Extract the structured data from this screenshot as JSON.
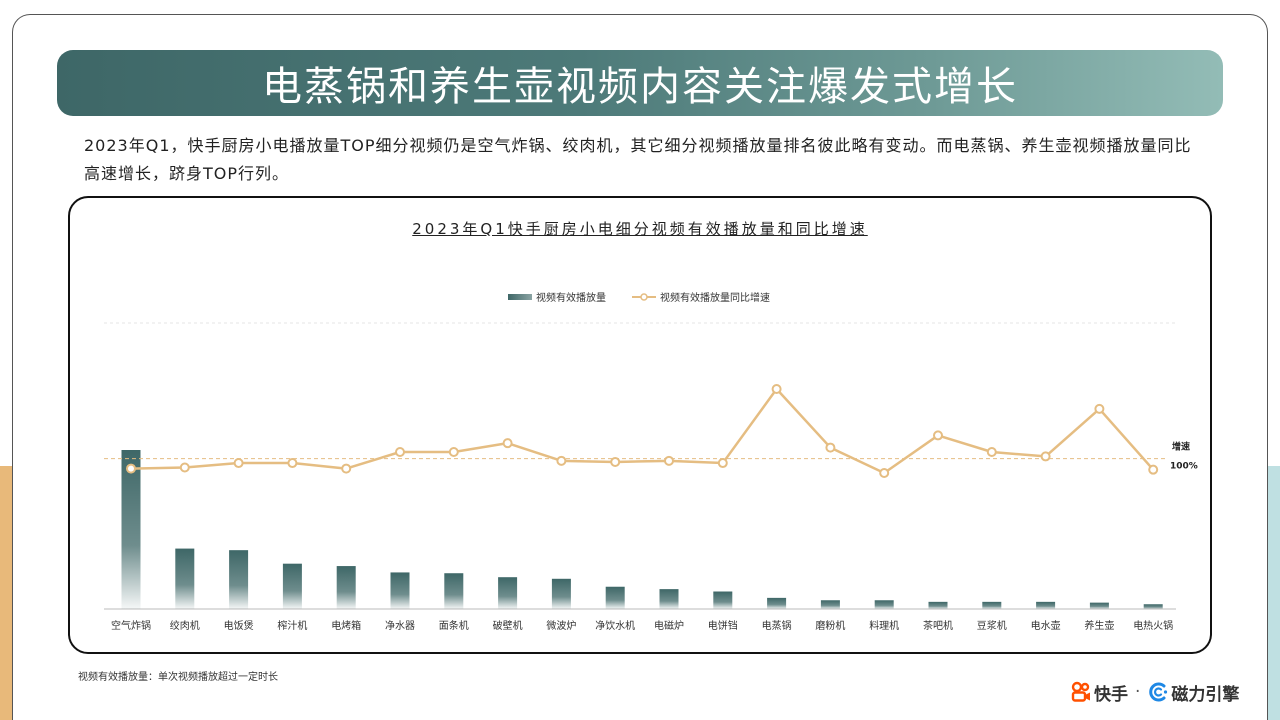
{
  "header": {
    "title": "电蒸锅和养生壶视频内容关注爆发式增长"
  },
  "summary": "2023年Q1，快手厨房小电播放量TOP细分视频仍是空气炸锅、绞肉机，其它细分视频播放量排名彼此略有变动。而电蒸锅、养生壶视频播放量同比高速增长，跻身TOP行列。",
  "footnote": "视频有效播放量：单次视频播放超过一定时长",
  "brand": {
    "kuaishou": "快手",
    "separator": "·",
    "cili": "磁力引擎",
    "kuaishou_color": "#ff5000",
    "cili_color": "#1e88e5"
  },
  "colors": {
    "bar": "#3e6767",
    "line": "#e5bd82",
    "title_gradient_start": "#3e6767",
    "title_gradient_end": "#93bcb6"
  },
  "chart_data": {
    "type": "bar",
    "title": "2023年Q1快手厨房小电细分视频有效播放量和同比增速",
    "categories": [
      "空气炸锅",
      "绞肉机",
      "电饭煲",
      "榨汁机",
      "电烤箱",
      "净水器",
      "面条机",
      "破壁机",
      "微波炉",
      "净饮水机",
      "电磁炉",
      "电饼铛",
      "电蒸锅",
      "磨粉机",
      "料理机",
      "茶吧机",
      "豆浆机",
      "电水壶",
      "养生壶",
      "电热火锅"
    ],
    "series": [
      {
        "name": "视频有效播放量",
        "type": "bar",
        "values": [
          100,
          38,
          37,
          28.5,
          27,
          23,
          22.5,
          20,
          19,
          14,
          12.5,
          11,
          7,
          5.5,
          5.5,
          4.5,
          4.5,
          4.5,
          4,
          3
        ]
      },
      {
        "name": "视频有效播放量同比增速",
        "type": "line",
        "values": [
          91,
          92,
          96,
          96,
          91,
          106,
          106,
          114,
          98,
          97,
          98,
          96,
          163,
          110,
          87,
          121,
          106,
          102,
          145,
          90
        ]
      }
    ],
    "reference_line": {
      "label_line1": "增速",
      "label_line2": "100%",
      "value": 100
    },
    "legend_position": "top-center",
    "grid": false
  }
}
